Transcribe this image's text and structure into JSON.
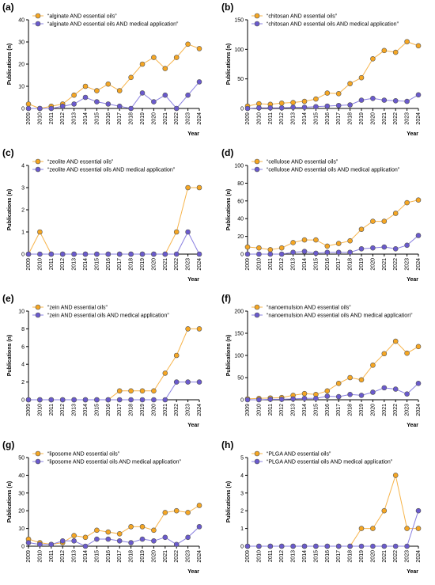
{
  "colors": {
    "orange": "#F5A623",
    "blue": "#6A5ACD",
    "orange_line": "#F7B44B",
    "blue_line": "#8A80E0",
    "axis": "#000000"
  },
  "chart_data": [
    {
      "panel": "(a)",
      "type": "line",
      "xlabel": "Year",
      "ylabel": "Publications (n)",
      "ylim": [
        0,
        40
      ],
      "yticks": [
        0,
        10,
        20,
        30,
        40
      ],
      "x": [
        "2009",
        "2010",
        "2011",
        "2012",
        "2013",
        "2014",
        "2015",
        "2016",
        "2017",
        "2018",
        "2019",
        "2020",
        "2021",
        "2022",
        "2023",
        "2024"
      ],
      "series": [
        {
          "name": "“alginate AND essential oils”",
          "color": "#F5A623",
          "values": [
            2,
            0,
            1,
            2,
            6,
            10,
            8,
            11,
            8,
            14,
            20,
            23,
            18,
            23,
            29,
            27
          ]
        },
        {
          "name": "“alginate AND essential oils AND medical application”",
          "color": "#6A5ACD",
          "values": [
            0,
            0,
            0,
            1,
            2,
            5,
            3,
            2,
            1,
            0,
            7,
            3,
            6,
            0,
            6,
            12
          ]
        }
      ]
    },
    {
      "panel": "(b)",
      "type": "line",
      "xlabel": "Year",
      "ylabel": "Publications (n)",
      "ylim": [
        0,
        150
      ],
      "yticks": [
        0,
        50,
        100,
        150
      ],
      "x": [
        "2009",
        "2010",
        "2011",
        "2012",
        "2013",
        "2014",
        "2015",
        "2016",
        "2017",
        "2018",
        "2019",
        "2020",
        "2021",
        "2022",
        "2023",
        "2024"
      ],
      "series": [
        {
          "name": "“chitosan AND essential oils”",
          "color": "#F5A623",
          "values": [
            4,
            8,
            7,
            9,
            10,
            12,
            16,
            26,
            25,
            42,
            52,
            84,
            98,
            95,
            113,
            106
          ]
        },
        {
          "name": "“chitosan AND essential oils AND medical application”",
          "color": "#6A5ACD",
          "values": [
            0,
            1,
            1,
            1,
            2,
            2,
            3,
            4,
            5,
            6,
            14,
            17,
            14,
            13,
            12,
            23
          ]
        }
      ]
    },
    {
      "panel": "(c)",
      "type": "line",
      "xlabel": "Year",
      "ylabel": "Publications (n)",
      "ylim": [
        0,
        4
      ],
      "yticks": [
        0,
        1,
        2,
        3,
        4
      ],
      "x": [
        "2009",
        "2010",
        "2011",
        "2012",
        "2013",
        "2014",
        "2015",
        "2016",
        "2017",
        "2018",
        "2019",
        "2020",
        "2021",
        "2022",
        "2023",
        "2024"
      ],
      "series": [
        {
          "name": "“zeolite AND essential oils”",
          "color": "#F5A623",
          "values": [
            0,
            1,
            0,
            0,
            0,
            0,
            0,
            0,
            0,
            0,
            0,
            0,
            0,
            1,
            3,
            3
          ]
        },
        {
          "name": "“zeolite AND essential oils AND medical application”",
          "color": "#6A5ACD",
          "values": [
            0,
            0,
            0,
            0,
            0,
            0,
            0,
            0,
            0,
            0,
            0,
            0,
            0,
            0,
            1,
            0
          ]
        }
      ]
    },
    {
      "panel": "(d)",
      "type": "line",
      "xlabel": "Year",
      "ylabel": "Publications (n)",
      "ylim": [
        0,
        100
      ],
      "yticks": [
        0,
        20,
        40,
        60,
        80,
        100
      ],
      "x": [
        "2009",
        "2010",
        "2011",
        "2012",
        "2013",
        "2014",
        "2015",
        "2016",
        "2017",
        "2018",
        "2019",
        "2020",
        "2021",
        "2022",
        "2023",
        "2024"
      ],
      "series": [
        {
          "name": "“cellulose AND essential oils”",
          "color": "#F5A623",
          "values": [
            8,
            7,
            5,
            7,
            13,
            16,
            16,
            9,
            12,
            15,
            28,
            37,
            37,
            46,
            58,
            61
          ]
        },
        {
          "name": "“cellulose AND essential oils AND medical application”",
          "color": "#6A5ACD",
          "values": [
            0,
            0,
            0,
            0,
            2,
            3,
            1,
            2,
            2,
            2,
            6,
            7,
            8,
            6,
            10,
            21
          ]
        }
      ]
    },
    {
      "panel": "(e)",
      "type": "line",
      "xlabel": "Year",
      "ylabel": "Publications (n)",
      "ylim": [
        0,
        10
      ],
      "yticks": [
        0,
        2,
        4,
        6,
        8,
        10
      ],
      "x": [
        "2009",
        "2010",
        "2011",
        "2012",
        "2013",
        "2014",
        "2015",
        "2016",
        "2017",
        "2018",
        "2019",
        "2020",
        "2021",
        "2022",
        "2023",
        "2024"
      ],
      "series": [
        {
          "name": "“zein AND essential oils”",
          "color": "#F5A623",
          "values": [
            0,
            0,
            0,
            0,
            0,
            0,
            0,
            0,
            1,
            1,
            1,
            1,
            3,
            5,
            8,
            8
          ]
        },
        {
          "name": "“zein AND essential oils AND medical application”",
          "color": "#6A5ACD",
          "values": [
            0,
            0,
            0,
            0,
            0,
            0,
            0,
            0,
            0,
            0,
            0,
            0,
            0,
            2,
            2,
            2
          ]
        }
      ]
    },
    {
      "panel": "(f)",
      "type": "line",
      "xlabel": "Year",
      "ylabel": "Publications (n)",
      "ylim": [
        0,
        200
      ],
      "yticks": [
        0,
        50,
        100,
        150,
        200
      ],
      "x": [
        "2009",
        "2010",
        "2011",
        "2012",
        "2013",
        "2014",
        "2015",
        "2016",
        "2017",
        "2018",
        "2019",
        "2020",
        "2021",
        "2022",
        "2023",
        "2024"
      ],
      "series": [
        {
          "name": "“nanoemulsion AND essential oils”",
          "color": "#F5A623",
          "values": [
            2,
            3,
            4,
            5,
            10,
            14,
            12,
            20,
            37,
            50,
            45,
            78,
            104,
            132,
            105,
            120
          ]
        },
        {
          "name": "“nanoemulsion AND essential oils AND medical application”",
          "color": "#6A5ACD",
          "values": [
            0,
            0,
            1,
            1,
            2,
            3,
            3,
            8,
            7,
            12,
            10,
            17,
            27,
            24,
            13,
            37
          ]
        }
      ]
    },
    {
      "panel": "(g)",
      "type": "line",
      "xlabel": "Year",
      "ylabel": "Publications (n)",
      "ylim": [
        0,
        50
      ],
      "yticks": [
        0,
        10,
        20,
        30,
        40,
        50
      ],
      "x": [
        "2009",
        "2010",
        "2011",
        "2012",
        "2013",
        "2014",
        "2015",
        "2016",
        "2017",
        "2018",
        "2019",
        "2020",
        "2021",
        "2022",
        "2023",
        "2024"
      ],
      "series": [
        {
          "name": "“liposome AND essential oils”",
          "color": "#F5A623",
          "values": [
            4,
            2,
            1,
            2,
            6,
            5,
            9,
            8,
            7,
            11,
            11,
            9,
            19,
            20,
            19,
            23
          ]
        },
        {
          "name": "“liposome AND essential oils AND medical application”",
          "color": "#6A5ACD",
          "values": [
            2,
            1,
            1,
            3,
            3,
            0,
            4,
            4,
            3,
            2,
            4,
            3,
            5,
            1,
            5,
            11
          ]
        }
      ]
    },
    {
      "panel": "(h)",
      "type": "line",
      "xlabel": "Year",
      "ylabel": "Publications (n)",
      "ylim": [
        0,
        5
      ],
      "yticks": [
        0,
        1,
        2,
        3,
        4,
        5
      ],
      "x": [
        "2009",
        "2010",
        "2011",
        "2012",
        "2013",
        "2014",
        "2015",
        "2016",
        "2017",
        "2018",
        "2019",
        "2020",
        "2021",
        "2022",
        "2023",
        "2024"
      ],
      "series": [
        {
          "name": "“PLGA AND essential oils”",
          "color": "#F5A623",
          "values": [
            0,
            0,
            0,
            0,
            0,
            0,
            0,
            0,
            0,
            0,
            1,
            1,
            2,
            4,
            1,
            1
          ]
        },
        {
          "name": "“PLGA AND essential oils AND medical application”",
          "color": "#6A5ACD",
          "values": [
            0,
            0,
            0,
            0,
            0,
            0,
            0,
            0,
            0,
            0,
            0,
            0,
            0,
            0,
            0,
            2
          ]
        }
      ]
    }
  ]
}
